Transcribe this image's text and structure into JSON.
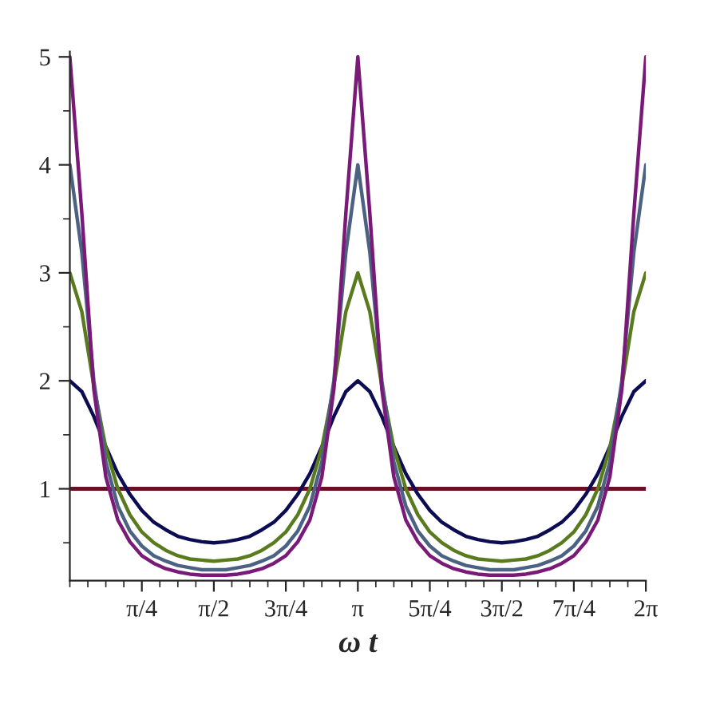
{
  "chart_data": {
    "type": "line",
    "xlabel": "ω t",
    "x": [
      0,
      0.1309,
      0.2618,
      0.3927,
      0.5236,
      0.6545,
      0.7854,
      0.9163,
      1.0472,
      1.1781,
      1.309,
      1.4399,
      1.5708,
      1.7017,
      1.8326,
      1.9635,
      2.0944,
      2.2253,
      2.3562,
      2.4871,
      2.618,
      2.7489,
      2.8798,
      3.0107,
      3.1416,
      3.2725,
      3.4034,
      3.5343,
      3.6652,
      3.7961,
      3.927,
      4.0579,
      4.1888,
      4.3197,
      4.4506,
      4.5815,
      4.7124,
      4.8433,
      4.9742,
      5.1051,
      5.236,
      5.3669,
      5.4978,
      5.6287,
      5.7596,
      5.8905,
      6.0214,
      6.1523,
      6.2832
    ],
    "series": [
      {
        "color": "#6b0f23",
        "x": [
          0,
          6.2832
        ],
        "values": [
          1,
          1
        ]
      },
      {
        "color": "#0c0c52",
        "values": [
          2,
          1.9,
          1.67,
          1.39,
          1.14,
          0.95,
          0.8,
          0.69,
          0.62,
          0.56,
          0.53,
          0.51,
          0.5,
          0.51,
          0.53,
          0.56,
          0.62,
          0.69,
          0.8,
          0.95,
          1.14,
          1.39,
          1.67,
          1.9,
          2,
          1.9,
          1.67,
          1.39,
          1.14,
          0.95,
          0.8,
          0.69,
          0.62,
          0.56,
          0.53,
          0.51,
          0.5,
          0.51,
          0.53,
          0.56,
          0.62,
          0.69,
          0.8,
          0.95,
          1.14,
          1.39,
          1.67,
          1.9,
          2
        ]
      },
      {
        "color": "#5a7a1e",
        "values": [
          3,
          2.64,
          1.95,
          1.38,
          1.0,
          0.76,
          0.6,
          0.5,
          0.43,
          0.38,
          0.35,
          0.34,
          0.33,
          0.34,
          0.35,
          0.38,
          0.43,
          0.5,
          0.6,
          0.76,
          1.0,
          1.38,
          1.95,
          2.64,
          3,
          2.64,
          1.95,
          1.38,
          1.0,
          0.76,
          0.6,
          0.5,
          0.43,
          0.38,
          0.35,
          0.34,
          0.33,
          0.34,
          0.35,
          0.38,
          0.43,
          0.5,
          0.6,
          0.76,
          1.0,
          1.38,
          1.95,
          2.64,
          3
        ]
      },
      {
        "color": "#4c6282",
        "values": [
          4,
          3.19,
          2.0,
          1.25,
          0.84,
          0.61,
          0.47,
          0.38,
          0.33,
          0.29,
          0.27,
          0.25,
          0.25,
          0.25,
          0.27,
          0.29,
          0.33,
          0.38,
          0.47,
          0.61,
          0.84,
          1.25,
          2.0,
          3.19,
          4,
          3.19,
          2.0,
          1.25,
          0.84,
          0.61,
          0.47,
          0.38,
          0.33,
          0.29,
          0.27,
          0.25,
          0.25,
          0.25,
          0.27,
          0.29,
          0.33,
          0.38,
          0.47,
          0.61,
          0.84,
          1.25,
          2.0,
          3.19,
          4
        ]
      },
      {
        "color": "#7a1a78",
        "values": [
          5,
          3.55,
          1.92,
          1.11,
          0.71,
          0.51,
          0.38,
          0.31,
          0.26,
          0.23,
          0.21,
          0.2,
          0.2,
          0.2,
          0.21,
          0.23,
          0.26,
          0.31,
          0.38,
          0.51,
          0.71,
          1.11,
          1.92,
          3.55,
          5,
          3.55,
          1.92,
          1.11,
          0.71,
          0.51,
          0.38,
          0.31,
          0.26,
          0.23,
          0.21,
          0.2,
          0.2,
          0.2,
          0.21,
          0.23,
          0.26,
          0.31,
          0.38,
          0.51,
          0.71,
          1.11,
          1.92,
          3.55,
          5
        ]
      }
    ],
    "xlim": [
      0,
      6.2832
    ],
    "ylim": [
      0.15,
      5.05
    ],
    "xticks": [
      {
        "value": 0.7854,
        "label": "π/4"
      },
      {
        "value": 1.5708,
        "label": "π/2"
      },
      {
        "value": 2.3562,
        "label": "3π/4"
      },
      {
        "value": 3.1416,
        "label": "π"
      },
      {
        "value": 3.927,
        "label": "5π/4"
      },
      {
        "value": 4.7124,
        "label": "3π/2"
      },
      {
        "value": 5.4978,
        "label": "7π/4"
      },
      {
        "value": 6.2832,
        "label": "2π"
      }
    ],
    "yticks": [
      1,
      2,
      3,
      4,
      5
    ],
    "grid": false,
    "legend": false,
    "line_style": "solid",
    "marker": "none"
  }
}
